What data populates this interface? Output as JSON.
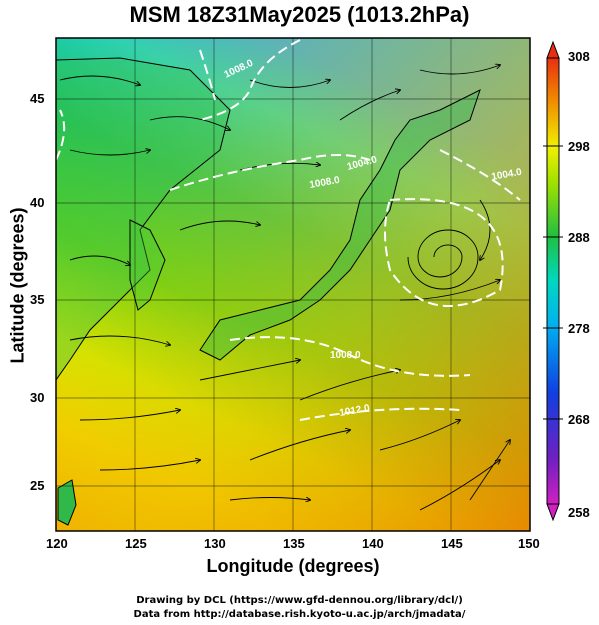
{
  "header": {
    "title": "MSM 18Z31May2025 (1013.2hPa)"
  },
  "axes": {
    "xlabel": "Longitude (degrees)",
    "ylabel": "Latitude  (degrees)",
    "xticks": [
      "120",
      "125",
      "130",
      "135",
      "140",
      "145",
      "150"
    ],
    "yticks": [
      "25",
      "30",
      "35",
      "40",
      "45"
    ]
  },
  "colorbar": {
    "labels": [
      "308",
      "298",
      "288",
      "278",
      "268",
      "258"
    ],
    "range": [
      258,
      308
    ],
    "stops": [
      "#d020c0",
      "#6020c0",
      "#1040e0",
      "#00b0f0",
      "#00e0b0",
      "#20c040",
      "#a0e000",
      "#f0f000",
      "#f09000",
      "#e83010"
    ]
  },
  "contours": {
    "labels": [
      "1008.0",
      "1004.0",
      "1008.0",
      "1004.0",
      "1008.0",
      "1012.0"
    ]
  },
  "footer": {
    "line1": "Drawing by DCL (https://www.gfd-dennou.org/library/dcl/)",
    "line2": "Data from http://database.rish.kyoto-u.ac.jp/arch/jmadata/"
  },
  "chart_data": {
    "type": "heatmap",
    "title": "MSM 18Z31May2025 (1013.2hPa)",
    "xlabel": "Longitude (degrees)",
    "ylabel": "Latitude  (degrees)",
    "xlim": [
      120,
      150
    ],
    "ylim": [
      22.4,
      47.6
    ],
    "colorbar_range": [
      258,
      308
    ],
    "colorbar_ticks": [
      258,
      268,
      278,
      288,
      298,
      308
    ],
    "grid": true,
    "field": "temperature (K) with streamlines and pressure contours",
    "low_center": {
      "lon": 143.5,
      "lat": 37.5
    }
  }
}
